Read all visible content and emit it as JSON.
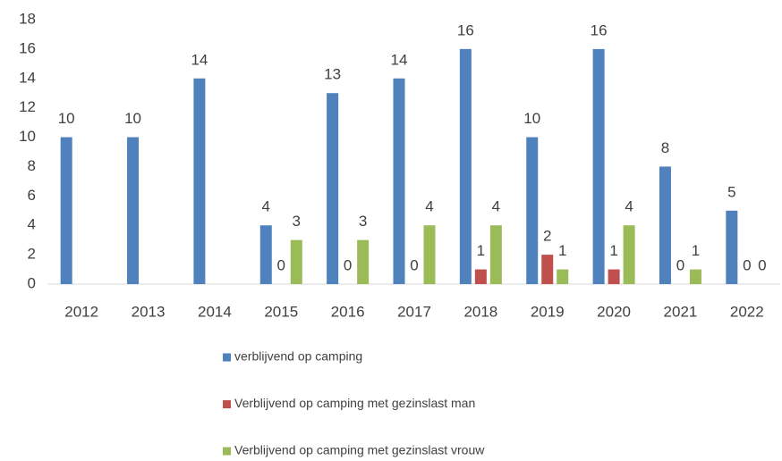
{
  "chart_data": {
    "type": "bar",
    "categories": [
      "2012",
      "2013",
      "2014",
      "2015",
      "2016",
      "2017",
      "2018",
      "2019",
      "2020",
      "2021",
      "2022"
    ],
    "series": [
      {
        "name": "verblijvend op camping",
        "color": "#4f81bd",
        "values": [
          10,
          10,
          14,
          4,
          13,
          14,
          16,
          10,
          16,
          8,
          5
        ]
      },
      {
        "name": "Verblijvend op camping met gezinslast man",
        "color": "#c0504d",
        "values": [
          null,
          null,
          null,
          0,
          0,
          0,
          1,
          2,
          1,
          0,
          0
        ]
      },
      {
        "name": "Verblijvend op camping met gezinslast vrouw",
        "color": "#9bbb59",
        "values": [
          null,
          null,
          null,
          3,
          3,
          4,
          4,
          1,
          4,
          1,
          0
        ]
      }
    ],
    "ylim": [
      0,
      18
    ],
    "yticks": [
      0,
      2,
      4,
      6,
      8,
      10,
      12,
      14,
      16,
      18
    ],
    "grid": false,
    "legend": "bottom"
  }
}
